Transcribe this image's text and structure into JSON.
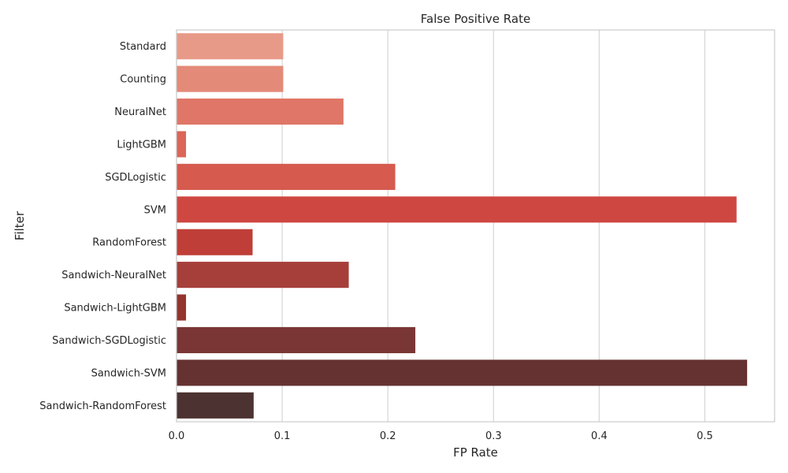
{
  "chart_data": {
    "type": "bar",
    "orientation": "horizontal",
    "title": "False Positive Rate",
    "xlabel": "FP Rate",
    "ylabel": "Filter",
    "categories": [
      "Standard",
      "Counting",
      "NeuralNet",
      "LightGBM",
      "SGDLogistic",
      "SVM",
      "RandomForest",
      "Sandwich-NeuralNet",
      "Sandwich-LightGBM",
      "Sandwich-SGDLogistic",
      "Sandwich-SVM",
      "Sandwich-RandomForest"
    ],
    "values": [
      0.101,
      0.101,
      0.158,
      0.009,
      0.207,
      0.53,
      0.072,
      0.163,
      0.009,
      0.226,
      0.54,
      0.073
    ],
    "xlim": [
      0,
      0.566
    ],
    "xticks": [
      0.0,
      0.1,
      0.2,
      0.3,
      0.4,
      0.5
    ],
    "xtick_labels": [
      "0.0",
      "0.1",
      "0.2",
      "0.3",
      "0.4",
      "0.5"
    ],
    "grid": "vertical",
    "colors": [
      "#e89a88",
      "#e48a78",
      "#df7667",
      "#da6558",
      "#d65a4e",
      "#cf4741",
      "#bf3e37",
      "#a63f3a",
      "#93342f",
      "#7a3635",
      "#653231",
      "#4c3230"
    ],
    "gridline_color": "#d6d6d6",
    "frame_color": "#cccccc",
    "text_color": "#262626"
  }
}
